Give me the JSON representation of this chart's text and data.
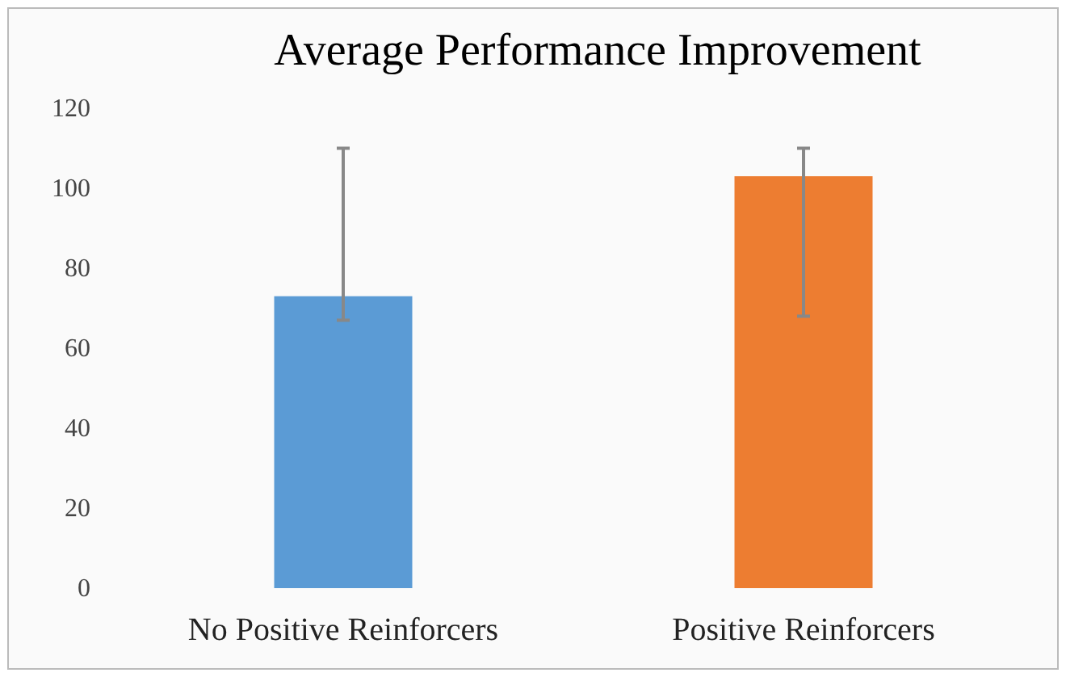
{
  "chart_data": {
    "type": "bar",
    "title": "Average Performance Improvement",
    "categories": [
      "No Positive Reinforcers",
      "Positive Reinforcers"
    ],
    "values": [
      73,
      103
    ],
    "colors": [
      "#5b9bd5",
      "#ed7d31"
    ],
    "errors": [
      [
        67,
        110
      ],
      [
        68,
        110
      ]
    ],
    "ylim": [
      0,
      120
    ],
    "yticks": [
      0,
      20,
      40,
      60,
      80,
      100,
      120
    ],
    "grid": false
  }
}
